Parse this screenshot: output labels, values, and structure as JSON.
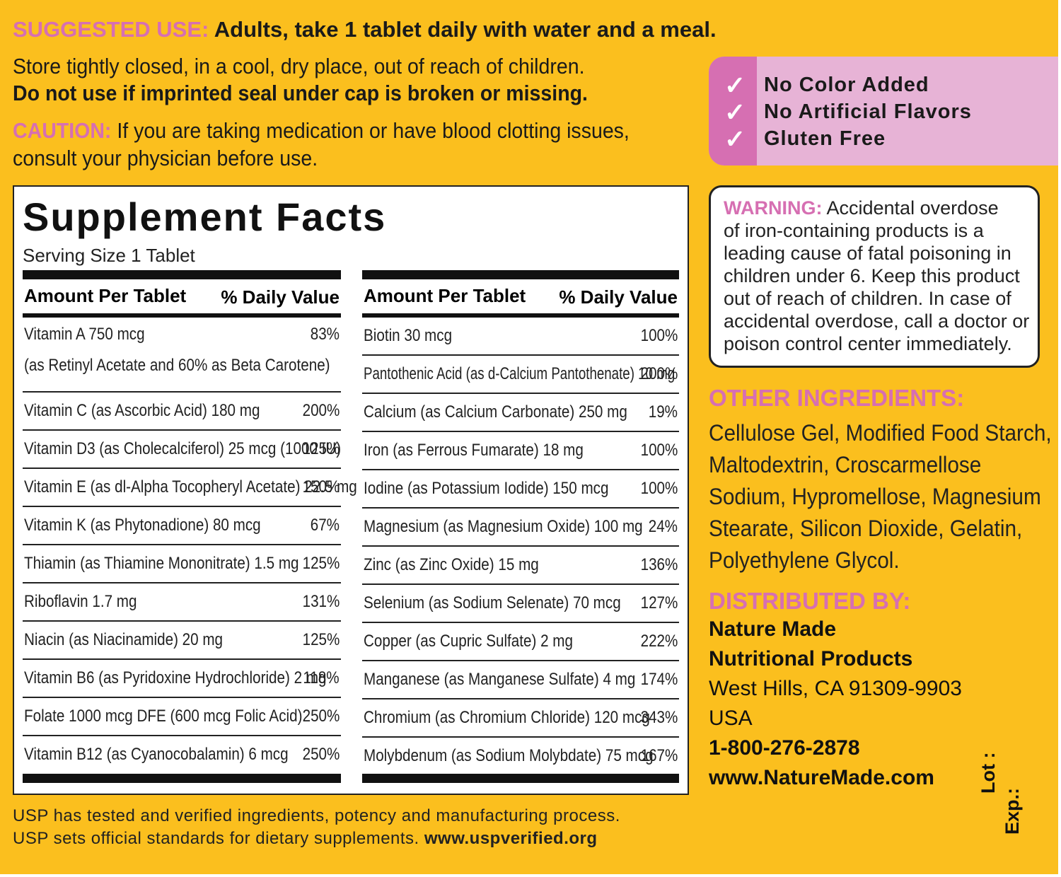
{
  "top": {
    "suggested_label": "SUGGESTED USE:",
    "suggested_text": "Adults, take 1 tablet daily with water and a meal.",
    "store_line1": "Store tightly closed, in a cool, dry place, out of reach of children.",
    "store_line2": "Do not use if imprinted seal under cap is broken or missing.",
    "caution_label": "CAUTION:",
    "caution_line1": "If you are taking medication or have blood clotting issues,",
    "caution_line2": "consult your physician before use."
  },
  "claims": {
    "items": [
      "No Color Added",
      "No Artificial Flavors",
      "Gluten Free"
    ],
    "check": "✓"
  },
  "facts": {
    "title": "Supplement Facts",
    "serving": "Serving Size 1 Tablet",
    "header_amount": "Amount Per Tablet",
    "header_dv": "% Daily Value",
    "left_rows": [
      {
        "name": "Vitamin A  750 mcg",
        "sub": "(as Retinyl Acetate and 60% as Beta Carotene)",
        "dv": "83%"
      },
      {
        "name": "Vitamin C (as Ascorbic Acid)  180 mg",
        "dv": "200%"
      },
      {
        "name": "Vitamin D3 (as Cholecalciferol)  25 mcg (1000 IU)",
        "dv": "125%"
      },
      {
        "name": "Vitamin E (as dl-Alpha Tocopheryl Acetate)  22.5 mg",
        "dv": "150%"
      },
      {
        "name": "Vitamin K (as Phytonadione)  80 mcg",
        "dv": "67%"
      },
      {
        "name": "Thiamin (as Thiamine Mononitrate)  1.5 mg",
        "dv": "125%"
      },
      {
        "name": "Riboflavin  1.7 mg",
        "dv": "131%"
      },
      {
        "name": "Niacin (as Niacinamide)  20 mg",
        "dv": "125%"
      },
      {
        "name": "Vitamin B6 (as Pyridoxine Hydrochloride)  2 mg",
        "dv": "118%"
      },
      {
        "name": "Folate  1000 mcg DFE (600 mcg Folic Acid)",
        "dv": "250%"
      },
      {
        "name": "Vitamin B12 (as Cyanocobalamin)  6 mcg",
        "dv": "250%"
      }
    ],
    "right_rows": [
      {
        "name": "Biotin  30 mcg",
        "dv": "100%"
      },
      {
        "name": "Pantothenic Acid (as d-Calcium Pantothenate)  10 mg",
        "dv": "200%"
      },
      {
        "name": "Calcium (as Calcium Carbonate)  250 mg",
        "dv": "19%"
      },
      {
        "name": "Iron (as Ferrous Fumarate)  18 mg",
        "dv": "100%"
      },
      {
        "name": "Iodine (as Potassium Iodide)  150 mcg",
        "dv": "100%"
      },
      {
        "name": "Magnesium (as Magnesium Oxide)  100 mg",
        "dv": "24%"
      },
      {
        "name": "Zinc (as Zinc Oxide)  15 mg",
        "dv": "136%"
      },
      {
        "name": "Selenium (as Sodium Selenate)  70 mcg",
        "dv": "127%"
      },
      {
        "name": "Copper (as Cupric Sulfate)  2 mg",
        "dv": "222%"
      },
      {
        "name": "Manganese (as Manganese Sulfate)  4 mg",
        "dv": "174%"
      },
      {
        "name": "Chromium (as Chromium Chloride)  120 mcg",
        "dv": "343%"
      },
      {
        "name": "Molybdenum (as Sodium Molybdate)  75 mcg",
        "dv": "167%"
      }
    ]
  },
  "warning": {
    "label": "WARNING:",
    "lines": [
      "Accidental overdose",
      "of iron-containing products is a",
      "leading cause of fatal poisoning in",
      "children under 6. Keep this product",
      "out of reach of children. In case of",
      "accidental overdose, call a doctor or",
      "poison control center immediately."
    ]
  },
  "other_ingredients": {
    "heading": "OTHER INGREDIENTS:",
    "lines": [
      "Cellulose Gel, Modified Food Starch,",
      "Maltodextrin, Croscarmellose",
      "Sodium, Hypromellose, Magnesium",
      "Stearate, Silicon Dioxide, Gelatin,",
      "Polyethylene Glycol."
    ]
  },
  "distributor": {
    "heading": "DISTRIBUTED BY:",
    "name1": "Nature Made",
    "name2": "Nutritional Products",
    "address": "West Hills, CA 91309-9903",
    "country": "USA",
    "phone": "1-800-276-2878",
    "website": "www.NatureMade.com"
  },
  "lot_exp": {
    "lot": "Lot :",
    "exp": "Exp.:"
  },
  "usp": {
    "line1": "USP has tested and verified ingredients, potency and manufacturing process.",
    "line2_text": "USP sets official standards for dietary supplements.",
    "line2_link": "www.uspverified.org"
  },
  "colors": {
    "background": "#fbbf1e",
    "accent_pink": "#d66fb2",
    "claims_bg": "#e7b3d6"
  }
}
